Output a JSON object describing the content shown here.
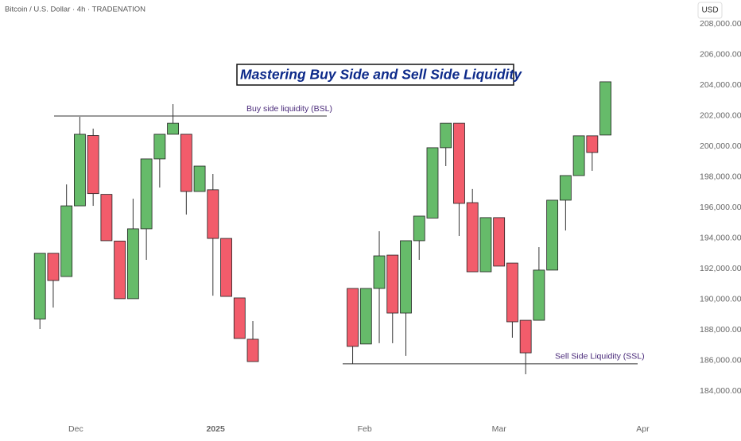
{
  "chart_data": {
    "type": "candlestick",
    "header": "Bitcoin / U.S. Dollar · 4h · TRADENATION",
    "currency": "USD",
    "title": "Mastering Buy Side and Sell Side Liquidity",
    "up_color": "#66bb6a",
    "down_color": "#f25c6b",
    "x": [
      0,
      1,
      2,
      3,
      4,
      5,
      6,
      7,
      8,
      9,
      10,
      11,
      12,
      13,
      14,
      15,
      16,
      23.5,
      24.5,
      25.5,
      26.5,
      27.5,
      28.5,
      29.5,
      30.5,
      31.5,
      32.5,
      33.5,
      34.5,
      35.5,
      36.5,
      37.5,
      38.5,
      39.5,
      40.5,
      41.5,
      42.5
    ],
    "open": [
      188700,
      193000,
      191480,
      196100,
      200700,
      196850,
      193800,
      190030,
      194600,
      199170,
      200780,
      200780,
      197040,
      197150,
      193970,
      190080,
      187380,
      190700,
      187070,
      190700,
      192880,
      189090,
      193820,
      195300,
      199900,
      201500,
      196310,
      191790,
      195330,
      192360,
      188620,
      188620,
      191900,
      196470,
      198080,
      200680,
      200730
    ],
    "high": [
      193000,
      193000,
      197500,
      201920,
      201150,
      196850,
      193800,
      196570,
      199170,
      200780,
      202750,
      200780,
      198700,
      198180,
      193970,
      190080,
      188570,
      190700,
      190700,
      194440,
      192880,
      193820,
      195430,
      199900,
      201500,
      201500,
      197200,
      195330,
      195330,
      192360,
      188620,
      193400,
      196470,
      198080,
      200680,
      200680,
      204210
    ],
    "low": [
      188050,
      189450,
      191480,
      196100,
      196100,
      193820,
      190030,
      190030,
      192570,
      197300,
      200780,
      195530,
      197040,
      190230,
      190180,
      187430,
      185920,
      185770,
      187070,
      187120,
      187120,
      186290,
      192570,
      195300,
      198700,
      194130,
      191790,
      191790,
      192160,
      187480,
      185090,
      188620,
      191900,
      194490,
      198080,
      198390,
      200730
    ],
    "close": [
      193000,
      191220,
      196100,
      200780,
      196900,
      193820,
      190030,
      194600,
      199170,
      200780,
      201500,
      197040,
      198700,
      193970,
      190180,
      187430,
      185920,
      186910,
      190700,
      192830,
      189090,
      193820,
      195430,
      199900,
      201500,
      196260,
      191790,
      195330,
      192160,
      188520,
      186490,
      191900,
      196470,
      198080,
      200680,
      199590,
      204210
    ],
    "levels": [
      {
        "label": "Buy side liquidity (BSL)",
        "value": 201970
      },
      {
        "label": "Sell Side Liquidity (SSL)",
        "value": 185770
      }
    ],
    "xlim": [
      -3,
      48.5
    ],
    "xticks": [
      {
        "value": 2.7,
        "label": "Dec"
      },
      {
        "value": 13.2,
        "label": "2025"
      },
      {
        "value": 24.4,
        "label": "Feb"
      },
      {
        "value": 34.5,
        "label": "Mar"
      },
      {
        "value": 45.3,
        "label": "Apr"
      }
    ],
    "ylim": [
      182000,
      209500
    ],
    "yticks": [
      {
        "value": 184000,
        "label": "184,000.00"
      },
      {
        "value": 186000,
        "label": "186,000.00"
      },
      {
        "value": 188000,
        "label": "188,000.00"
      },
      {
        "value": 190000,
        "label": "190,000.00"
      },
      {
        "value": 192000,
        "label": "192,000.00"
      },
      {
        "value": 194000,
        "label": "194,000.00"
      },
      {
        "value": 196000,
        "label": "196,000.00"
      },
      {
        "value": 198000,
        "label": "198,000.00"
      },
      {
        "value": 200000,
        "label": "200,000.00"
      },
      {
        "value": 202000,
        "label": "202,000.00"
      },
      {
        "value": 204000,
        "label": "204,000.00"
      },
      {
        "value": 206000,
        "label": "206,000.00"
      },
      {
        "value": 208000,
        "label": "208,000.00"
      }
    ]
  }
}
